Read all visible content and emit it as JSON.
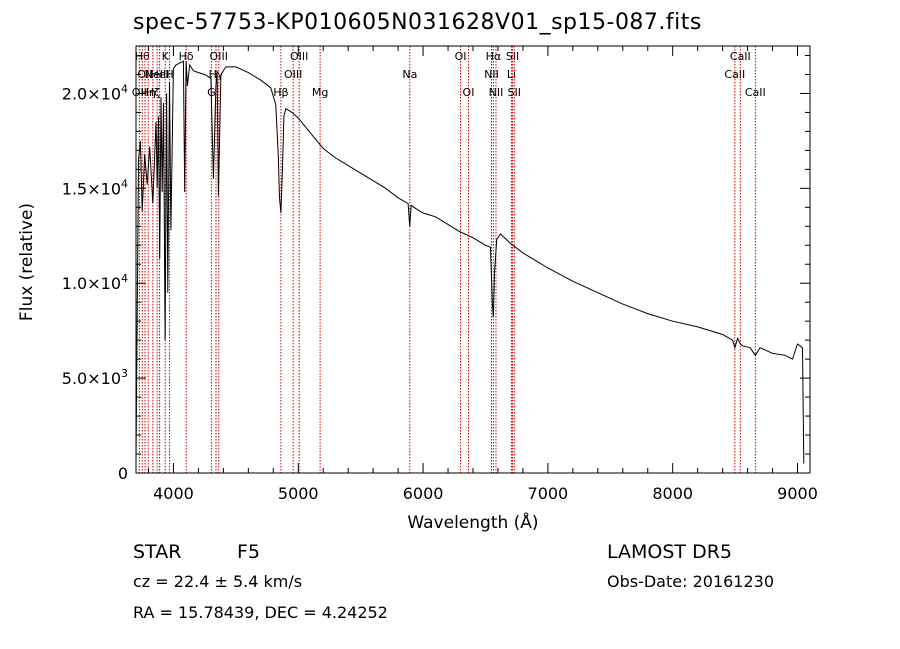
{
  "header": {
    "title": "spec-57753-KP010605N031628V01_sp15-087.fits"
  },
  "footer": {
    "object_class": "STAR",
    "subclass": "F5",
    "survey": "LAMOST DR5",
    "redshift": "cz = 22.4 ± 5.4 km/s",
    "obs_date": "Obs-Date: 20161230",
    "coords": "RA =  15.78439, DEC =   4.24252"
  },
  "colors": {
    "spectrum": "#000000",
    "line_markers": "#cc0000",
    "axes": "#000000"
  },
  "chart_data": {
    "type": "line",
    "title": "spec-57753-KP010605N031628V01_sp15-087.fits",
    "xlabel": "Wavelength (Å)",
    "ylabel": "Flux (relative)",
    "xlim": [
      3700,
      9100
    ],
    "ylim": [
      0,
      22500
    ],
    "x_ticks": [
      4000,
      5000,
      6000,
      7000,
      8000,
      9000
    ],
    "x_tick_labels": [
      "4000",
      "5000",
      "6000",
      "7000",
      "8000",
      "9000"
    ],
    "y_ticks": [
      0,
      5000,
      10000,
      15000,
      20000
    ],
    "y_tick_labels": [
      {
        "mant": "0",
        "exp": ""
      },
      {
        "mant": "5.0×10",
        "exp": "3"
      },
      {
        "mant": "1.0×10",
        "exp": "4"
      },
      {
        "mant": "1.5×10",
        "exp": "4"
      },
      {
        "mant": "2.0×10",
        "exp": "4"
      }
    ],
    "grid": false,
    "series": [
      {
        "x": [
          3700,
          3720,
          3735,
          3750,
          3770,
          3790,
          3810,
          3835,
          3860,
          3870,
          3880,
          3890,
          3900,
          3910,
          3920,
          3933,
          3945,
          3955,
          3968,
          3980,
          4000,
          4020,
          4050,
          4080,
          4090,
          4101,
          4112,
          4130,
          4160,
          4200,
          4250,
          4300,
          4320,
          4340,
          4350,
          4360,
          4380,
          4420,
          4500,
          4600,
          4700,
          4780,
          4820,
          4840,
          4850,
          4861,
          4872,
          4885,
          4900,
          4950,
          5000,
          5050,
          5100,
          5150,
          5200,
          5300,
          5400,
          5500,
          5600,
          5700,
          5800,
          5880,
          5893,
          5905,
          5950,
          6000,
          6100,
          6200,
          6300,
          6400,
          6500,
          6540,
          6555,
          6563,
          6572,
          6590,
          6620,
          6700,
          6800,
          6900,
          7000,
          7200,
          7400,
          7600,
          7800,
          8000,
          8200,
          8400,
          8480,
          8498,
          8520,
          8542,
          8560,
          8620,
          8662,
          8700,
          8800,
          8900,
          8960,
          9000,
          9020,
          9040,
          9050
        ],
        "y": [
          600,
          16500,
          17500,
          13800,
          16800,
          15200,
          17200,
          14200,
          18500,
          15000,
          18800,
          11300,
          19800,
          14800,
          19500,
          7000,
          20000,
          9500,
          20600,
          12800,
          21300,
          21500,
          21600,
          21700,
          14800,
          21700,
          20400,
          21500,
          21200,
          21100,
          21000,
          20800,
          15500,
          20400,
          21200,
          14600,
          21000,
          21400,
          21400,
          21100,
          20700,
          20300,
          19400,
          16700,
          14500,
          13700,
          15800,
          18800,
          19200,
          19000,
          18700,
          18300,
          17900,
          17500,
          17100,
          16600,
          16200,
          15800,
          15400,
          15000,
          14500,
          14200,
          13000,
          14100,
          13900,
          13700,
          13500,
          13100,
          12700,
          12400,
          12000,
          11900,
          9000,
          8200,
          10500,
          12300,
          12600,
          12100,
          11600,
          11200,
          10800,
          10100,
          9500,
          8900,
          8400,
          8000,
          7700,
          7300,
          7000,
          6600,
          7100,
          6800,
          6700,
          6600,
          6200,
          6600,
          6300,
          6200,
          6000,
          6800,
          6700,
          6600,
          500
        ]
      }
    ],
    "line_markers": [
      {
        "wl": 3727,
        "label": "OII",
        "row": 2
      },
      {
        "wl": 3750,
        "label": "Hθ",
        "row": 0
      },
      {
        "wl": 3772,
        "label": "OII",
        "row": 1
      },
      {
        "wl": 3798,
        "label": "Hη",
        "row": 2
      },
      {
        "wl": 3835,
        "label": "Hζ",
        "row": 2
      },
      {
        "wl": 3869,
        "label": "NeIII",
        "row": 1
      },
      {
        "wl": 3889,
        "label": "HeI",
        "row": 1
      },
      {
        "wl": 3934,
        "label": "K",
        "row": 0
      },
      {
        "wl": 3969,
        "label": "H",
        "row": 1
      },
      {
        "wl": 4102,
        "label": "Hδ",
        "row": 0
      },
      {
        "wl": 4304,
        "label": "G",
        "row": 2
      },
      {
        "wl": 4341,
        "label": "Hγ",
        "row": 1
      },
      {
        "wl": 4363,
        "label": "OIII",
        "row": 0
      },
      {
        "wl": 4861,
        "label": "Hβ",
        "row": 2
      },
      {
        "wl": 4959,
        "label": "OIII",
        "row": 1
      },
      {
        "wl": 5007,
        "label": "OIII",
        "row": 0
      },
      {
        "wl": 5175,
        "label": "Mg",
        "row": 2
      },
      {
        "wl": 5894,
        "label": "Na",
        "row": 1
      },
      {
        "wl": 6300,
        "label": "OI",
        "row": 0
      },
      {
        "wl": 6364,
        "label": "OI",
        "row": 2
      },
      {
        "wl": 6548,
        "label": "NII",
        "row": 1
      },
      {
        "wl": 6563,
        "label": "Hα",
        "row": 0
      },
      {
        "wl": 6584,
        "label": "NII",
        "row": 2
      },
      {
        "wl": 6708,
        "label": "Li",
        "row": 1
      },
      {
        "wl": 6717,
        "label": "SII",
        "row": 0
      },
      {
        "wl": 6731,
        "label": "SII",
        "row": 2
      },
      {
        "wl": 8498,
        "label": "CaII",
        "row": 1
      },
      {
        "wl": 8542,
        "label": "CaII",
        "row": 0
      },
      {
        "wl": 8662,
        "label": "CaII",
        "row": 2
      }
    ]
  }
}
